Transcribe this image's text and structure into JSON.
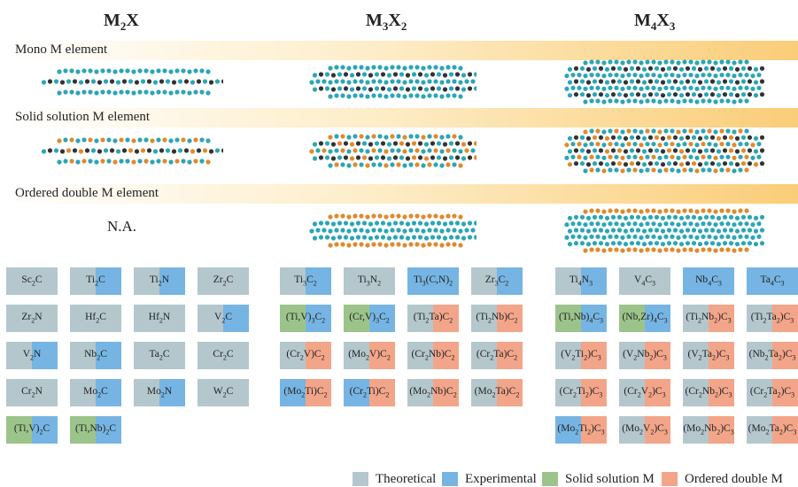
{
  "headers": [
    "M2X",
    "M3X2",
    "M4X3"
  ],
  "bands": [
    {
      "label": "Mono M element"
    },
    {
      "label": "Solid solution M element"
    },
    {
      "label": "Ordered double M element"
    }
  ],
  "na_label": "N.A.",
  "colors": {
    "theoretical": "#b4c7cc",
    "experimental": "#76b5e3",
    "solid_solution": "#9cc48a",
    "ordered_double": "#f3a589",
    "atom_m": "#2ba6b5",
    "atom_m2": "#e08a2c",
    "atom_x": "#333333"
  },
  "legend": [
    {
      "label": "Theoretical",
      "color": "#b4c7cc"
    },
    {
      "label": "Experimental",
      "color": "#76b5e3"
    },
    {
      "label": "Solid solution M",
      "color": "#9cc48a"
    },
    {
      "label": "Ordered double M",
      "color": "#f3a589"
    }
  ],
  "grids": [
    {
      "rows": [
        [
          {
            "text": "Sc2C",
            "fill": "theo"
          },
          {
            "text": "Ti2C",
            "fill": "half_exp"
          },
          {
            "text": "Ti2N",
            "fill": "half_exp"
          },
          {
            "text": "Zr2C",
            "fill": "theo"
          }
        ],
        [
          {
            "text": "Zr2N",
            "fill": "theo"
          },
          {
            "text": "Hf2C",
            "fill": "theo"
          },
          {
            "text": "Hf2N",
            "fill": "theo"
          },
          {
            "text": "V2C",
            "fill": "half_exp"
          }
        ],
        [
          {
            "text": "V2N",
            "fill": "half_exp"
          },
          {
            "text": "Nb2C",
            "fill": "half_exp"
          },
          {
            "text": "Ta2C",
            "fill": "theo"
          },
          {
            "text": "Cr2C",
            "fill": "theo"
          }
        ],
        [
          {
            "text": "Cr2N",
            "fill": "theo"
          },
          {
            "text": "Mo2C",
            "fill": "half_exp"
          },
          {
            "text": "Mo2N",
            "fill": "half_exp"
          },
          {
            "text": "W2C",
            "fill": "theo"
          }
        ],
        [
          {
            "text": "(Ti,V)2C",
            "fill": "ss_exp"
          },
          {
            "text": "(Ti,Nb)2C",
            "fill": "ss_exp"
          }
        ]
      ]
    },
    {
      "rows": [
        [
          {
            "text": "Ti3C2",
            "fill": "half_exp"
          },
          {
            "text": "Ti3N2",
            "fill": "theo"
          },
          {
            "text": "Ti3(C,N)2",
            "fill": "exp"
          },
          {
            "text": "Zr3C2",
            "fill": "half_exp"
          }
        ],
        [
          {
            "text": "(Ti,V)3C2",
            "fill": "ss_exp"
          },
          {
            "text": "(Cr,V)3C2",
            "fill": "ss_exp"
          },
          {
            "text": "(Ti2Ta)C2",
            "fill": "theo_od"
          },
          {
            "text": "(Ti2Nb)C2",
            "fill": "theo_od"
          }
        ],
        [
          {
            "text": "(Cr2V)C2",
            "fill": "theo_od"
          },
          {
            "text": "(Mo2V)C2",
            "fill": "theo_od"
          },
          {
            "text": "(Cr2Nb)C2",
            "fill": "theo_od"
          },
          {
            "text": "(Cr2Ta)C2",
            "fill": "theo_od"
          }
        ],
        [
          {
            "text": "(Mo2Ti)C2",
            "fill": "exp_od"
          },
          {
            "text": "(Cr2Ti)C2",
            "fill": "exp_od"
          },
          {
            "text": "(Mo2Nb)C2",
            "fill": "theo_od"
          },
          {
            "text": "(Mo2Ta)C2",
            "fill": "theo_od"
          }
        ]
      ]
    },
    {
      "rows": [
        [
          {
            "text": "Ti4N3",
            "fill": "half_exp"
          },
          {
            "text": "V4C3",
            "fill": "theo"
          },
          {
            "text": "Nb4C3",
            "fill": "exp"
          },
          {
            "text": "Ta4C3",
            "fill": "exp"
          }
        ],
        [
          {
            "text": "(Ti,Nb)4C3",
            "fill": "ss_exp"
          },
          {
            "text": "(Nb,Zr)4C3",
            "fill": "ss_exp"
          },
          {
            "text": "(Ti2Nb2)C3",
            "fill": "theo_od"
          },
          {
            "text": "(Ti2Ta2)C3",
            "fill": "theo_od"
          }
        ],
        [
          {
            "text": "(V2Ti2)C3",
            "fill": "theo_od"
          },
          {
            "text": "(V2Nb2)C3",
            "fill": "theo_od"
          },
          {
            "text": "(V2Ta2)C3",
            "fill": "theo_od"
          },
          {
            "text": "(Nb2Ta2)C3",
            "fill": "theo_od"
          }
        ],
        [
          {
            "text": "(Cr2Ti2)C3",
            "fill": "theo_od"
          },
          {
            "text": "(Cr2V2)C3",
            "fill": "theo_od"
          },
          {
            "text": "(Cr2Nb2)C3",
            "fill": "theo_od"
          },
          {
            "text": "(Cr2Ta2)C3",
            "fill": "theo_od"
          }
        ],
        [
          {
            "text": "(Mo2Ti2)C3",
            "fill": "exp_od"
          },
          {
            "text": "(Mo2V2)C3",
            "fill": "theo_od"
          },
          {
            "text": "(Mo2Nb2)C3",
            "fill": "theo_od"
          },
          {
            "text": "(Mo2Ta2)C3",
            "fill": "theo_od"
          }
        ]
      ]
    }
  ]
}
